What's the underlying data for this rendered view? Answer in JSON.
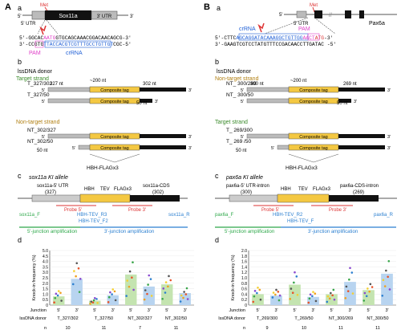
{
  "panel_A": {
    "letter": "A",
    "a": {
      "sub": "a",
      "met": "Met",
      "utr5": "5' UTR",
      "gene": "Sox11a",
      "utr3": "3' UTR",
      "end5": "5'",
      "end3": "3'",
      "seq_top_left": "5'-GGCAC",
      "seq_top_mid": "AATG",
      "seq_top_right": "GTGCAGCAAACGGACAACAGCG-3'",
      "seq_bot_left": "3'-CCGTG",
      "seq_bot_mid": "TTACCACGTCGTTTGCCTGTTGT",
      "seq_bot_right": "CGC-5'",
      "pam": "PAM",
      "crrna": "crRNA"
    },
    "b": {
      "sub": "b",
      "title": "lssDNA donor",
      "target": "Target strand",
      "nontarget": "Non-target strand",
      "len_left": "327 nt",
      "len_mid": "~200 nt",
      "len_right": "302 nt",
      "len_50": "50 nt",
      "composite": "Composite tag",
      "donors": [
        "T_327/302",
        "T_327/50",
        "NT_302/327",
        "NT_302/50"
      ],
      "hbh": "HBH-FLAGx3"
    },
    "c": {
      "sub": "c",
      "title": "sox11a KI allele",
      "utr_label": "sox11a-5' UTR",
      "utr_len": "(327)",
      "cds_label": "sox11a-CDS",
      "cds_len": "(302)",
      "tags": [
        "HBH",
        "TEV",
        "FLAGx3"
      ],
      "probe5": "Probe 5'",
      "probe3": "Probe 3'",
      "primers": [
        "sox11a_F",
        "HBH-TEV_R3",
        "HBH-TEV_F2",
        "sox11a_R"
      ],
      "amp5": "5'-junction amplification",
      "amp3": "3'-junction amplification"
    },
    "d": {
      "sub": "d"
    }
  },
  "panel_B": {
    "letter": "B",
    "a": {
      "sub": "a",
      "met": "Met",
      "utr5": "5' UTR",
      "gene": "Pax6a",
      "end5": "5'",
      "crrna": "crRNA",
      "pam": "PAM",
      "seq_top_left": "5'-CTTC",
      "seq_top_mid": "AGCAGGATACAAAGGCTGTTGG",
      "seq_top_right": "AACT",
      "seq_top_atg": "ATG",
      "seq_top_end": "-3'",
      "seq_bot": "3'-GAAGTCGTCCTATGTTTCCGACAACCTTGATAC -5'"
    },
    "b": {
      "sub": "b",
      "title": "lssDNA donor",
      "nontarget": "Non-target strand",
      "target": "Target strand",
      "len_left": "300 nt",
      "len_mid": "~200 nt",
      "len_right": "269 nt",
      "len_50": "50 nt",
      "composite": "Composite tag",
      "donors": [
        "NT_ 300/269",
        "NT_ 300/50",
        "T_ 269/300",
        "T_ 269 /50"
      ],
      "hbh": "HBH-FLAGx3"
    },
    "c": {
      "sub": "c",
      "title": "pax6a KI allele",
      "utr_label": "pax6a-5' UTR-intron",
      "utr_len": "(300)",
      "cds_label": "pax6a-CDS-intron",
      "cds_len": "(269)",
      "tags": [
        "HBH",
        "TEV",
        "FLAGx3"
      ],
      "probe5": "Probe 5'",
      "probe3": "Probe 3'",
      "primers": [
        "pax6a_F",
        "HBH-TEV_R2",
        "HBH-TEV_F",
        "pax6a_R"
      ],
      "amp5": "5'-junction amplification",
      "amp3": "3'-junction amplification"
    },
    "d": {
      "sub": "d"
    }
  },
  "colors": {
    "pam": "#e040c8",
    "crrna": "#1f5fd6",
    "target": "#3a8a2a",
    "nontarget": "#b07e10",
    "tag": "#f4c842",
    "green": "#2ea84a",
    "blue": "#2b7fd0",
    "red": "#d33",
    "bar_blue": "#b8d4f0",
    "bar_green": "#c4e4b0"
  },
  "chart_data": [
    {
      "type": "bar",
      "ylabel": "Knock-in frequency (%)",
      "ylim": [
        0,
        5
      ],
      "yticks": [
        "0",
        "0.5",
        "1.0",
        "1.5",
        "2.0",
        "2.5",
        "3.0",
        "3.5",
        "4.0",
        "4.5",
        "5.0"
      ],
      "junction_label": "Junction",
      "donor_label": "lssDNA donor",
      "n_label": "n",
      "groups": [
        {
          "donor": "T_327/302",
          "n": "10",
          "bars": [
            {
              "junction": "5'",
              "value": 0.8,
              "color": "green"
            },
            {
              "junction": "3'",
              "value": 2.4,
              "color": "blue"
            }
          ]
        },
        {
          "donor": "T_327/50",
          "n": "11",
          "bars": [
            {
              "junction": "5'",
              "value": 0.4,
              "color": "green"
            },
            {
              "junction": "3'",
              "value": 0.9,
              "color": "blue"
            }
          ]
        },
        {
          "donor": "NT_302/327",
          "n": "7",
          "bars": [
            {
              "junction": "5'",
              "value": 2.8,
              "color": "green"
            },
            {
              "junction": "3'",
              "value": 1.7,
              "color": "blue"
            }
          ]
        },
        {
          "donor": "NT_302/50",
          "n": "11",
          "bars": [
            {
              "junction": "5'",
              "value": 1.9,
              "color": "green"
            },
            {
              "junction": "3'",
              "value": 1.1,
              "color": "blue"
            }
          ]
        }
      ]
    },
    {
      "type": "bar",
      "ylabel": "Knock-in frequency (%)",
      "ylim": [
        0,
        2
      ],
      "yticks": [
        "0",
        "0.2",
        "0.4",
        "0.6",
        "0.8",
        "1.0",
        "1.2",
        "1.4",
        "1.6",
        "1.8",
        "2.0"
      ],
      "junction_label": "Junction",
      "donor_label": "lssDNA donor",
      "n_label": "n",
      "groups": [
        {
          "donor": "T_269/300",
          "n": "9",
          "bars": [
            {
              "junction": "5'",
              "value": 0.4,
              "color": "green"
            },
            {
              "junction": "3'",
              "value": 0.35,
              "color": "blue"
            }
          ]
        },
        {
          "donor": "T_269/50",
          "n": "10",
          "bars": [
            {
              "junction": "5'",
              "value": 0.75,
              "color": "green"
            },
            {
              "junction": "3'",
              "value": 0.3,
              "color": "blue"
            }
          ]
        },
        {
          "donor": "NT_300/269",
          "n": "11",
          "bars": [
            {
              "junction": "5'",
              "value": 0.4,
              "color": "green"
            },
            {
              "junction": "3'",
              "value": 0.85,
              "color": "blue"
            }
          ]
        },
        {
          "donor": "NT_300/50",
          "n": "11",
          "bars": [
            {
              "junction": "5'",
              "value": 0.55,
              "color": "green"
            },
            {
              "junction": "3'",
              "value": 1.15,
              "color": "blue"
            }
          ]
        }
      ]
    }
  ]
}
